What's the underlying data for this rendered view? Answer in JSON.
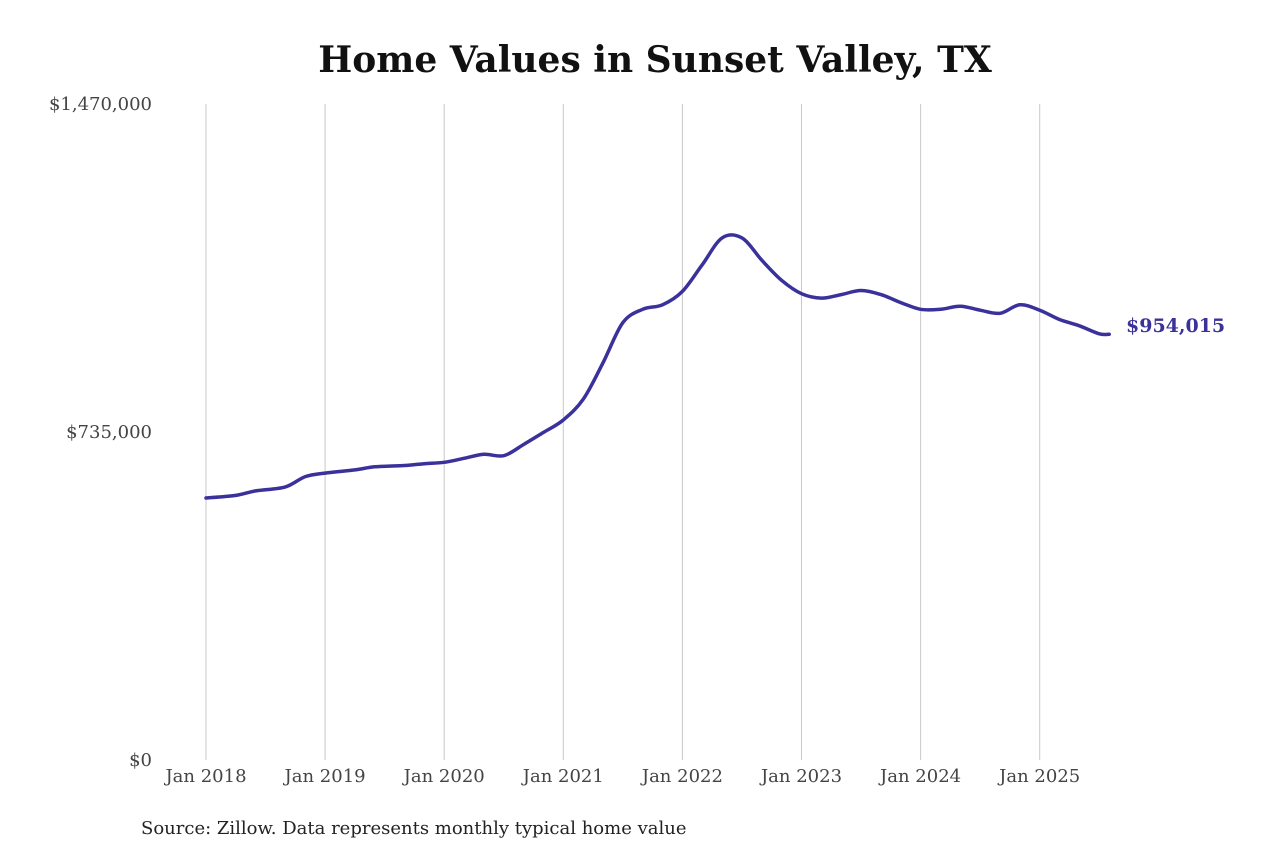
{
  "chart_data": {
    "type": "line",
    "title": "Home Values in Sunset Valley, TX",
    "xlabel": "",
    "ylabel": "",
    "ylim": [
      0,
      1470000
    ],
    "y_ticks": [
      {
        "value": 0,
        "label": "$0"
      },
      {
        "value": 735000,
        "label": "$735,000"
      },
      {
        "value": 1470000,
        "label": "$1,470,000"
      }
    ],
    "x_ticks": [
      {
        "value": "2018-01",
        "label": "Jan 2018"
      },
      {
        "value": "2019-01",
        "label": "Jan 2019"
      },
      {
        "value": "2020-01",
        "label": "Jan 2020"
      },
      {
        "value": "2021-01",
        "label": "Jan 2021"
      },
      {
        "value": "2022-01",
        "label": "Jan 2022"
      },
      {
        "value": "2023-01",
        "label": "Jan 2023"
      },
      {
        "value": "2024-01",
        "label": "Jan 2024"
      },
      {
        "value": "2025-01",
        "label": "Jan 2025"
      }
    ],
    "grid": {
      "vertical": true,
      "horizontal": false
    },
    "line_color": "#3a319b",
    "end_label": "$954,015",
    "source": "Source: Zillow. Data represents monthly typical home value",
    "series": [
      {
        "points": [
          [
            "2018-01",
            587000
          ],
          [
            "2018-04",
            593000
          ],
          [
            "2018-06",
            603000
          ],
          [
            "2018-09",
            612000
          ],
          [
            "2018-11",
            635000
          ],
          [
            "2019-01",
            643000
          ],
          [
            "2019-04",
            650000
          ],
          [
            "2019-06",
            657000
          ],
          [
            "2019-09",
            660000
          ],
          [
            "2019-11",
            664000
          ],
          [
            "2020-01",
            667000
          ],
          [
            "2020-03",
            676000
          ],
          [
            "2020-05",
            685000
          ],
          [
            "2020-07",
            682000
          ],
          [
            "2020-09",
            707000
          ],
          [
            "2020-11",
            734000
          ],
          [
            "2021-01",
            762000
          ],
          [
            "2021-03",
            808000
          ],
          [
            "2021-05",
            890000
          ],
          [
            "2021-07",
            980000
          ],
          [
            "2021-09",
            1010000
          ],
          [
            "2021-11",
            1020000
          ],
          [
            "2022-01",
            1050000
          ],
          [
            "2022-03",
            1110000
          ],
          [
            "2022-05",
            1170000
          ],
          [
            "2022-07",
            1170000
          ],
          [
            "2022-09",
            1120000
          ],
          [
            "2022-11",
            1075000
          ],
          [
            "2023-01",
            1045000
          ],
          [
            "2023-03",
            1035000
          ],
          [
            "2023-05",
            1043000
          ],
          [
            "2023-07",
            1052000
          ],
          [
            "2023-09",
            1043000
          ],
          [
            "2023-11",
            1025000
          ],
          [
            "2024-01",
            1010000
          ],
          [
            "2024-03",
            1010000
          ],
          [
            "2024-05",
            1017000
          ],
          [
            "2024-07",
            1008000
          ],
          [
            "2024-09",
            1001000
          ],
          [
            "2024-11",
            1020000
          ],
          [
            "2025-01",
            1008000
          ],
          [
            "2025-03",
            987000
          ],
          [
            "2025-05",
            973000
          ],
          [
            "2025-07",
            955000
          ],
          [
            "2025-08",
            954015
          ]
        ]
      }
    ]
  }
}
